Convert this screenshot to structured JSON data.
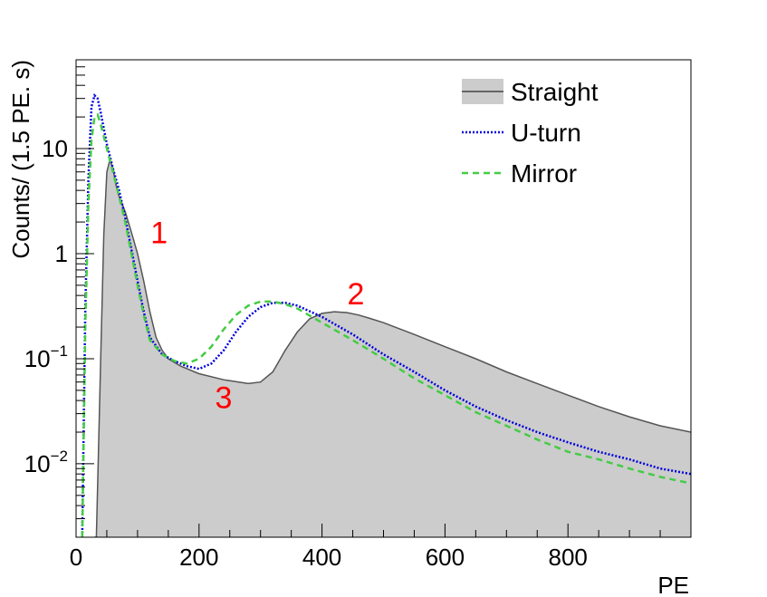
{
  "chart_data": {
    "type": "line",
    "title": "",
    "xlabel": "PE",
    "ylabel": "Counts/ (1.5 PE. s)",
    "xlim": [
      0,
      1000
    ],
    "ylim": [
      0.002,
      70
    ],
    "yscale": "log",
    "grid": false,
    "legend_position": "top-right",
    "x_ticks": [
      {
        "value": 0,
        "label": "0"
      },
      {
        "value": 200,
        "label": "200"
      },
      {
        "value": 400,
        "label": "400"
      },
      {
        "value": 600,
        "label": "600"
      },
      {
        "value": 800,
        "label": "800"
      }
    ],
    "y_ticks": [
      {
        "value": 10,
        "base": "10",
        "exp": ""
      },
      {
        "value": 1,
        "base": "1",
        "exp": ""
      },
      {
        "value": 0.1,
        "base": "10",
        "exp": "−1"
      },
      {
        "value": 0.01,
        "base": "10",
        "exp": "−2"
      }
    ],
    "series": [
      {
        "name": "Straight",
        "style": "filled",
        "color": "#555555",
        "fill": "#cccccc",
        "x": [
          30,
          33,
          36,
          40,
          45,
          50,
          55,
          60,
          65,
          70,
          80,
          90,
          100,
          110,
          120,
          130,
          140,
          150,
          170,
          200,
          240,
          280,
          300,
          320,
          340,
          360,
          380,
          400,
          420,
          440,
          460,
          480,
          500,
          550,
          600,
          650,
          700,
          750,
          800,
          850,
          900,
          950,
          1000
        ],
        "y": [
          0.002,
          0.002,
          0.01,
          0.1,
          1.5,
          6,
          7.8,
          6.5,
          4.5,
          3.5,
          2.5,
          1.6,
          1.0,
          0.55,
          0.28,
          0.16,
          0.12,
          0.1,
          0.085,
          0.072,
          0.063,
          0.058,
          0.06,
          0.075,
          0.12,
          0.18,
          0.24,
          0.27,
          0.28,
          0.275,
          0.26,
          0.24,
          0.22,
          0.17,
          0.13,
          0.1,
          0.075,
          0.058,
          0.045,
          0.035,
          0.028,
          0.023,
          0.02
        ]
      },
      {
        "name": "U-turn",
        "style": "dotted",
        "color": "#0000dd",
        "x": [
          10,
          15,
          20,
          25,
          30,
          35,
          40,
          50,
          60,
          70,
          80,
          90,
          100,
          110,
          120,
          140,
          160,
          180,
          200,
          220,
          240,
          260,
          280,
          300,
          320,
          340,
          360,
          400,
          450,
          500,
          550,
          600,
          650,
          700,
          750,
          800,
          850,
          900,
          950,
          1000
        ],
        "y": [
          0.002,
          0.3,
          5,
          25,
          32,
          30,
          22,
          11,
          6.5,
          4,
          2.2,
          1.1,
          0.55,
          0.28,
          0.16,
          0.11,
          0.095,
          0.085,
          0.08,
          0.09,
          0.12,
          0.18,
          0.25,
          0.31,
          0.34,
          0.34,
          0.32,
          0.25,
          0.17,
          0.11,
          0.075,
          0.05,
          0.035,
          0.026,
          0.02,
          0.016,
          0.013,
          0.011,
          0.009,
          0.008
        ]
      },
      {
        "name": "Mirror",
        "style": "dashed",
        "color": "#44cc44",
        "x": [
          10,
          15,
          20,
          25,
          30,
          35,
          40,
          50,
          60,
          70,
          80,
          90,
          100,
          110,
          120,
          140,
          160,
          180,
          200,
          220,
          240,
          260,
          280,
          300,
          320,
          340,
          360,
          400,
          450,
          500,
          550,
          600,
          650,
          700,
          750,
          800,
          850,
          900,
          950,
          1000
        ],
        "y": [
          0.002,
          0.2,
          3,
          12,
          20,
          21,
          17,
          10,
          6,
          3.5,
          2,
          1,
          0.5,
          0.26,
          0.15,
          0.11,
          0.095,
          0.09,
          0.1,
          0.13,
          0.19,
          0.26,
          0.32,
          0.35,
          0.35,
          0.33,
          0.3,
          0.22,
          0.15,
          0.1,
          0.065,
          0.045,
          0.031,
          0.023,
          0.017,
          0.013,
          0.011,
          0.009,
          0.0075,
          0.0065
        ]
      }
    ],
    "annotations": [
      {
        "text": "1",
        "x": 135,
        "y": 1.25,
        "color": "#ff0000"
      },
      {
        "text": "2",
        "x": 455,
        "y": 0.33,
        "color": "#ff0000"
      },
      {
        "text": "3",
        "x": 240,
        "y": 0.034,
        "color": "#ff0000"
      }
    ]
  }
}
